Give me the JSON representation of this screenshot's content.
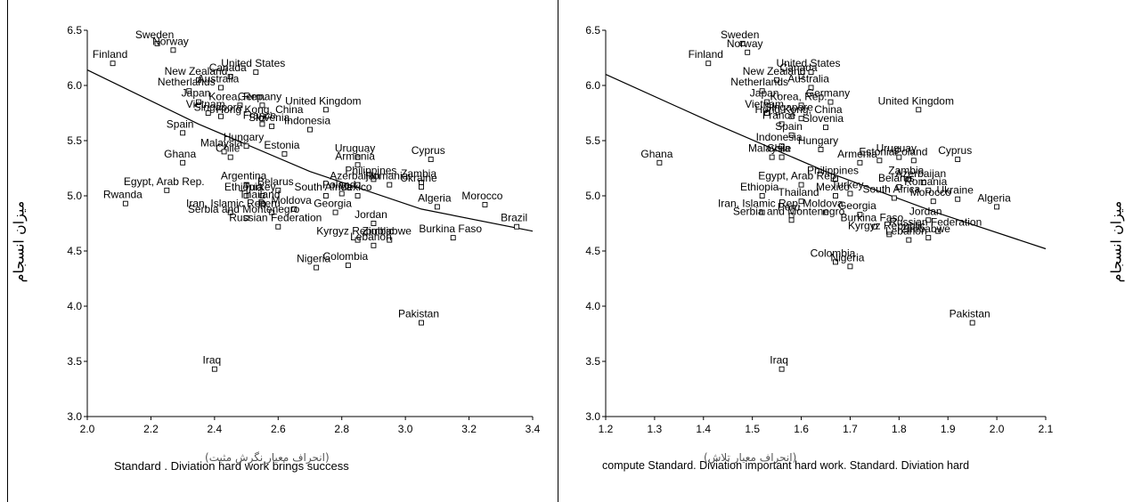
{
  "chart_data": [
    {
      "type": "scatter",
      "xlabel": "Standard . Diviation hard work brings success",
      "xlabel_overlay": "(انحراف معیار نگرش مثبت)",
      "ylabel": "میزان انسجام",
      "xlim": [
        2.0,
        3.4
      ],
      "ylim": [
        3.0,
        6.5
      ],
      "xticks": [
        "2.0",
        "2.2",
        "2.4",
        "2.6",
        "2.8",
        "3.0",
        "3.2",
        "3.4"
      ],
      "yticks": [
        "3.0",
        "3.5",
        "4.0",
        "4.5",
        "5.0",
        "5.5",
        "6.0",
        "6.5"
      ],
      "fit_line": {
        "x": [
          2.0,
          2.35,
          2.7,
          3.05,
          3.4
        ],
        "y": [
          6.14,
          5.65,
          5.22,
          4.88,
          4.68
        ]
      },
      "points": [
        {
          "label": "Finland",
          "x": 2.08,
          "y": 6.2
        },
        {
          "label": "Sweden",
          "x": 2.22,
          "y": 6.38
        },
        {
          "label": "Norway",
          "x": 2.27,
          "y": 6.32
        },
        {
          "label": "New Zealand",
          "x": 2.35,
          "y": 6.05
        },
        {
          "label": "Canada",
          "x": 2.45,
          "y": 6.08
        },
        {
          "label": "United States",
          "x": 2.53,
          "y": 6.12
        },
        {
          "label": "Netherlands",
          "x": 2.32,
          "y": 5.95
        },
        {
          "label": "Australia",
          "x": 2.42,
          "y": 5.98
        },
        {
          "label": "Japan",
          "x": 2.35,
          "y": 5.85
        },
        {
          "label": "Korea, Rep.",
          "x": 2.48,
          "y": 5.82
        },
        {
          "label": "Germany",
          "x": 2.55,
          "y": 5.82
        },
        {
          "label": "United Kingdom",
          "x": 2.75,
          "y": 5.78
        },
        {
          "label": "Vietnam",
          "x": 2.38,
          "y": 5.75
        },
        {
          "label": "Singapore",
          "x": 2.42,
          "y": 5.72
        },
        {
          "label": "Hong Kong, China",
          "x": 2.55,
          "y": 5.7
        },
        {
          "label": "France",
          "x": 2.55,
          "y": 5.65
        },
        {
          "label": "Slovenia",
          "x": 2.58,
          "y": 5.63
        },
        {
          "label": "Spain",
          "x": 2.3,
          "y": 5.57
        },
        {
          "label": "Chile",
          "x": 2.45,
          "y": 5.35
        },
        {
          "label": "Hungary",
          "x": 2.5,
          "y": 5.45
        },
        {
          "label": "Malaysia",
          "x": 2.43,
          "y": 5.4
        },
        {
          "label": "Indonesia",
          "x": 2.7,
          "y": 5.6
        },
        {
          "label": "Ghana",
          "x": 2.3,
          "y": 5.3
        },
        {
          "label": "Estonia",
          "x": 2.62,
          "y": 5.38
        },
        {
          "label": "Uruguay",
          "x": 2.85,
          "y": 5.35
        },
        {
          "label": "Cyprus",
          "x": 3.08,
          "y": 5.33
        },
        {
          "label": "Armenia",
          "x": 2.85,
          "y": 5.28
        },
        {
          "label": "Egypt, Arab Rep.",
          "x": 2.25,
          "y": 5.05
        },
        {
          "label": "Argentina",
          "x": 2.5,
          "y": 5.1
        },
        {
          "label": "Rwanda",
          "x": 2.12,
          "y": 4.93
        },
        {
          "label": "Ethiopia",
          "x": 2.5,
          "y": 5.0
        },
        {
          "label": "Turkey",
          "x": 2.55,
          "y": 5.0
        },
        {
          "label": "Belarus",
          "x": 2.6,
          "y": 5.05
        },
        {
          "label": "Philippines",
          "x": 2.9,
          "y": 5.15
        },
        {
          "label": "Zambia",
          "x": 3.05,
          "y": 5.12
        },
        {
          "label": "Romania",
          "x": 2.95,
          "y": 5.1
        },
        {
          "label": "Azerbaijan",
          "x": 2.85,
          "y": 5.1
        },
        {
          "label": "Ukraine",
          "x": 3.05,
          "y": 5.08
        },
        {
          "label": "Thailand",
          "x": 2.55,
          "y": 4.93
        },
        {
          "label": "Mexico",
          "x": 2.85,
          "y": 5.0
        },
        {
          "label": "South Africa",
          "x": 2.75,
          "y": 5.0
        },
        {
          "label": "Poland",
          "x": 2.8,
          "y": 5.02
        },
        {
          "label": "Iran, Islamic Rep.",
          "x": 2.45,
          "y": 4.85
        },
        {
          "label": "Peru",
          "x": 2.58,
          "y": 4.85
        },
        {
          "label": "Moldova",
          "x": 2.65,
          "y": 4.88
        },
        {
          "label": "Georgia",
          "x": 2.78,
          "y": 4.85
        },
        {
          "label": "Algeria",
          "x": 3.1,
          "y": 4.9
        },
        {
          "label": "Morocco",
          "x": 3.25,
          "y": 4.92
        },
        {
          "label": "Serbia and Montenegro",
          "x": 2.5,
          "y": 4.8
        },
        {
          "label": "Jordan",
          "x": 2.9,
          "y": 4.75
        },
        {
          "label": "Brazil",
          "x": 3.35,
          "y": 4.72
        },
        {
          "label": "Russian Federation",
          "x": 2.6,
          "y": 4.72
        },
        {
          "label": "Zimbabwe",
          "x": 2.95,
          "y": 4.6
        },
        {
          "label": "Burkina Faso",
          "x": 3.15,
          "y": 4.62
        },
        {
          "label": "Kyrgyz Republic",
          "x": 2.85,
          "y": 4.6
        },
        {
          "label": "Lebanon",
          "x": 2.9,
          "y": 4.55
        },
        {
          "label": "Nigeria",
          "x": 2.72,
          "y": 4.35
        },
        {
          "label": "Colombia",
          "x": 2.82,
          "y": 4.37
        },
        {
          "label": "Pakistan",
          "x": 3.05,
          "y": 3.85
        },
        {
          "label": "Iraq",
          "x": 2.4,
          "y": 3.43
        }
      ]
    },
    {
      "type": "scatter",
      "xlabel": "compute Standard. Diviation important hard work. Standard. Diviation hard",
      "xlabel_overlay": "(انحراف معیار تلاش)",
      "ylabel": "میزان انسجام",
      "xlim": [
        1.2,
        2.1
      ],
      "ylim": [
        3.0,
        6.5
      ],
      "xticks": [
        "1.2",
        "1.3",
        "1.4",
        "1.5",
        "1.6",
        "1.7",
        "1.8",
        "1.9",
        "2.0",
        "2.1"
      ],
      "yticks": [
        "3.0",
        "3.5",
        "4.0",
        "4.5",
        "5.0",
        "5.5",
        "6.0",
        "6.5"
      ],
      "fit_line": {
        "x": [
          1.2,
          1.425,
          1.65,
          1.875,
          2.1
        ],
        "y": [
          6.1,
          5.65,
          5.22,
          4.85,
          4.52
        ]
      },
      "points": [
        {
          "label": "Finland",
          "x": 1.41,
          "y": 6.2
        },
        {
          "label": "Sweden",
          "x": 1.48,
          "y": 6.38
        },
        {
          "label": "Norway",
          "x": 1.49,
          "y": 6.3
        },
        {
          "label": "New Zealand",
          "x": 1.55,
          "y": 6.05
        },
        {
          "label": "Canada",
          "x": 1.6,
          "y": 6.08
        },
        {
          "label": "United States",
          "x": 1.62,
          "y": 6.12
        },
        {
          "label": "Netherlands",
          "x": 1.52,
          "y": 5.95
        },
        {
          "label": "Australia",
          "x": 1.62,
          "y": 5.98
        },
        {
          "label": "Japan",
          "x": 1.53,
          "y": 5.85
        },
        {
          "label": "Korea, Rep.",
          "x": 1.6,
          "y": 5.82
        },
        {
          "label": "Germany",
          "x": 1.66,
          "y": 5.85
        },
        {
          "label": "United Kingdom",
          "x": 1.84,
          "y": 5.78
        },
        {
          "label": "Vietnam",
          "x": 1.53,
          "y": 5.75
        },
        {
          "label": "Singapore",
          "x": 1.58,
          "y": 5.72
        },
        {
          "label": "Hong Kong, China",
          "x": 1.6,
          "y": 5.7
        },
        {
          "label": "France",
          "x": 1.56,
          "y": 5.65
        },
        {
          "label": "Slovenia",
          "x": 1.65,
          "y": 5.62
        },
        {
          "label": "Spain",
          "x": 1.58,
          "y": 5.55
        },
        {
          "label": "Indonesia",
          "x": 1.56,
          "y": 5.45
        },
        {
          "label": "Chile",
          "x": 1.56,
          "y": 5.35
        },
        {
          "label": "Hungary",
          "x": 1.64,
          "y": 5.42
        },
        {
          "label": "Malaysia",
          "x": 1.54,
          "y": 5.35
        },
        {
          "label": "Ghana",
          "x": 1.31,
          "y": 5.3
        },
        {
          "label": "Armenia",
          "x": 1.72,
          "y": 5.3
        },
        {
          "label": "Uruguay",
          "x": 1.8,
          "y": 5.35
        },
        {
          "label": "Estonia",
          "x": 1.76,
          "y": 5.32
        },
        {
          "label": "Poland",
          "x": 1.83,
          "y": 5.32
        },
        {
          "label": "Cyprus",
          "x": 1.92,
          "y": 5.33
        },
        {
          "label": "Philippines",
          "x": 1.67,
          "y": 5.15
        },
        {
          "label": "Egypt, Arab Rep.",
          "x": 1.6,
          "y": 5.1
        },
        {
          "label": "Zambia",
          "x": 1.82,
          "y": 5.15
        },
        {
          "label": "Azerbaijan",
          "x": 1.85,
          "y": 5.12
        },
        {
          "label": "Belarus",
          "x": 1.8,
          "y": 5.08
        },
        {
          "label": "Romania",
          "x": 1.86,
          "y": 5.05
        },
        {
          "label": "Ethiopia",
          "x": 1.52,
          "y": 5.0
        },
        {
          "label": "Thailand",
          "x": 1.6,
          "y": 4.95
        },
        {
          "label": "Mexico",
          "x": 1.67,
          "y": 5.0
        },
        {
          "label": "Turkey",
          "x": 1.7,
          "y": 5.02
        },
        {
          "label": "South Africa",
          "x": 1.79,
          "y": 4.98
        },
        {
          "label": "Ukraine",
          "x": 1.92,
          "y": 4.97
        },
        {
          "label": "Algeria",
          "x": 2.0,
          "y": 4.9
        },
        {
          "label": "Morocco",
          "x": 1.87,
          "y": 4.95
        },
        {
          "label": "Iran, Islamic Rep.",
          "x": 1.52,
          "y": 4.85
        },
        {
          "label": "Peru",
          "x": 1.58,
          "y": 4.82
        },
        {
          "label": "Moldova",
          "x": 1.65,
          "y": 4.85
        },
        {
          "label": "Georgia",
          "x": 1.72,
          "y": 4.83
        },
        {
          "label": "Serbia and Montenegro",
          "x": 1.58,
          "y": 4.78
        },
        {
          "label": "Jordan",
          "x": 1.86,
          "y": 4.78
        },
        {
          "label": "Burkina Faso",
          "x": 1.75,
          "y": 4.72
        },
        {
          "label": "Russian Federation",
          "x": 1.88,
          "y": 4.68
        },
        {
          "label": "Kyrgyz Republic",
          "x": 1.78,
          "y": 4.65
        },
        {
          "label": "Lebanon",
          "x": 1.82,
          "y": 4.6
        },
        {
          "label": "Zimbabwe",
          "x": 1.86,
          "y": 4.62
        },
        {
          "label": "Colombia",
          "x": 1.67,
          "y": 4.4
        },
        {
          "label": "Nigeria",
          "x": 1.7,
          "y": 4.36
        },
        {
          "label": "Pakistan",
          "x": 1.95,
          "y": 3.85
        },
        {
          "label": "Iraq",
          "x": 1.56,
          "y": 3.43
        }
      ]
    }
  ]
}
